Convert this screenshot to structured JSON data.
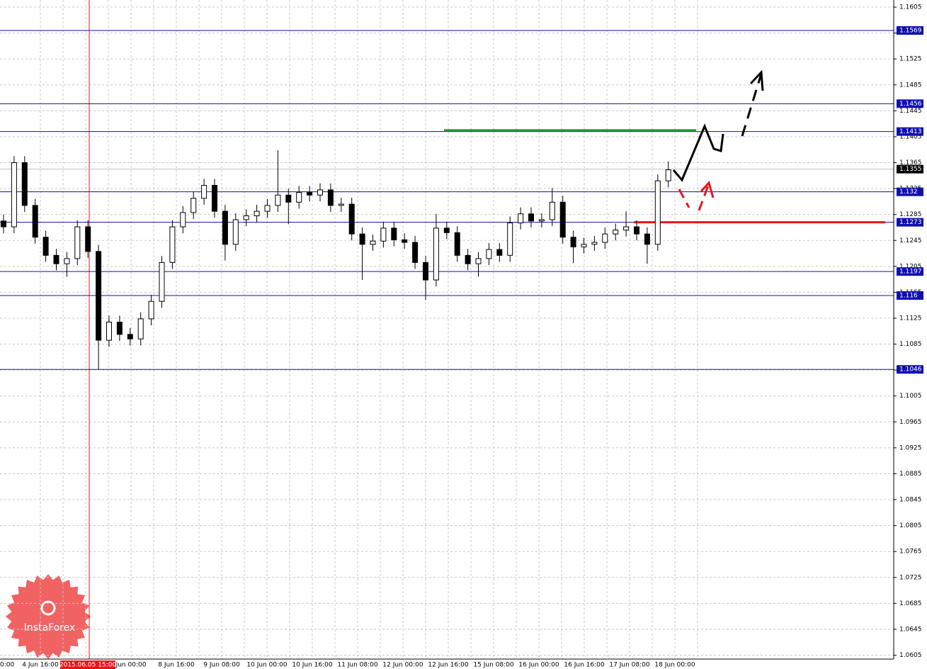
{
  "chart_data": {
    "type": "candlestick",
    "watermark": "InstaForex",
    "ylim": [
      1.0599,
      1.1616
    ],
    "yticks": [
      1.1605,
      1.1565,
      1.1525,
      1.1485,
      1.1445,
      1.1405,
      1.1365,
      1.1325,
      1.1285,
      1.1245,
      1.1205,
      1.1165,
      1.1125,
      1.1085,
      1.1045,
      1.1005,
      1.0965,
      1.0925,
      1.0885,
      1.0845,
      1.0805,
      1.0765,
      1.0725,
      1.0685,
      1.0645,
      1.0605
    ],
    "grid": true,
    "x_labels": [
      "0:00",
      "4 Jun 16:00",
      "2015.06.05 15:00",
      "Jun 00:00",
      "8 Jun 16:00",
      "9 Jun 08:00",
      "10 Jun 00:00",
      "10 Jun 16:00",
      "11 Jun 08:00",
      "12 Jun 00:00",
      "12 Jun 16:00",
      "15 Jun 08:00",
      "16 Jun 00:00",
      "16 Jun 16:00",
      "17 Jun 08:00",
      "18 Jun 00:00"
    ],
    "highlight_label_index": 2,
    "highlight_color": "#e8141a",
    "levels": [
      1.1569,
      1.1456,
      1.1413,
      1.132,
      1.1273,
      1.1197,
      1.116,
      1.1046
    ],
    "level_color": "#1010b0",
    "current_price": 1.1355,
    "trend_lines": [
      {
        "value": 1.1273,
        "color": "#e8141a"
      },
      {
        "value": 1.1415,
        "color": "#22a03a"
      }
    ],
    "ohlc": {
      "open": [
        1.1275,
        1.1266,
        1.1365,
        1.1299,
        1.125,
        1.1222,
        1.1209,
        1.1217,
        1.1266,
        1.1228,
        1.1091,
        1.1119,
        1.11,
        1.1093,
        1.1124,
        1.1151,
        1.1211,
        1.1266,
        1.1288,
        1.131,
        1.133,
        1.129,
        1.1239,
        1.1277,
        1.1283,
        1.129,
        1.1299,
        1.1315,
        1.1304,
        1.1319,
        1.1315,
        1.1323,
        1.1299,
        1.1301,
        1.1255,
        1.1239,
        1.1244,
        1.1264,
        1.1246,
        1.1242,
        1.1211,
        1.1184,
        1.1264,
        1.1257,
        1.1222,
        1.1209,
        1.1217,
        1.1231,
        1.1222,
        1.1272,
        1.1286,
        1.1275,
        1.1277,
        1.1304,
        1.125,
        1.1235,
        1.1239,
        1.1242,
        1.1255,
        1.1261,
        1.1266,
        1.1255,
        1.1239,
        1.1337
      ],
      "high": [
        1.1285,
        1.1375,
        1.1375,
        1.1309,
        1.126,
        1.1232,
        1.1227,
        1.1276,
        1.1276,
        1.1238,
        1.1129,
        1.1129,
        1.111,
        1.1134,
        1.1161,
        1.1221,
        1.1276,
        1.1298,
        1.132,
        1.134,
        1.134,
        1.13,
        1.1287,
        1.1293,
        1.13,
        1.1309,
        1.1384,
        1.1325,
        1.1329,
        1.1329,
        1.1333,
        1.1333,
        1.1311,
        1.1311,
        1.1265,
        1.1254,
        1.1274,
        1.1274,
        1.1256,
        1.1252,
        1.1221,
        1.1286,
        1.1274,
        1.1267,
        1.1232,
        1.1227,
        1.1241,
        1.1241,
        1.1282,
        1.1296,
        1.1296,
        1.1287,
        1.1326,
        1.1314,
        1.126,
        1.1249,
        1.1252,
        1.1265,
        1.1271,
        1.129,
        1.1276,
        1.1265,
        1.1347,
        1.1367
      ],
      "low": [
        1.1256,
        1.1256,
        1.1289,
        1.124,
        1.1212,
        1.1199,
        1.1189,
        1.1207,
        1.1218,
        1.1046,
        1.1081,
        1.109,
        1.1083,
        1.1083,
        1.1114,
        1.1141,
        1.1201,
        1.1256,
        1.1278,
        1.13,
        1.128,
        1.1214,
        1.1229,
        1.1267,
        1.1273,
        1.128,
        1.1289,
        1.127,
        1.1294,
        1.1305,
        1.1305,
        1.1289,
        1.1289,
        1.1245,
        1.1184,
        1.1229,
        1.1234,
        1.1236,
        1.1232,
        1.1201,
        1.1153,
        1.1174,
        1.1247,
        1.1212,
        1.1199,
        1.1189,
        1.1207,
        1.1212,
        1.1212,
        1.1262,
        1.1265,
        1.1265,
        1.1267,
        1.124,
        1.121,
        1.1225,
        1.1229,
        1.1232,
        1.1245,
        1.1251,
        1.1245,
        1.1209,
        1.1229,
        1.1327
      ],
      "close": [
        1.1266,
        1.1365,
        1.1299,
        1.125,
        1.1222,
        1.1209,
        1.1217,
        1.1266,
        1.1228,
        1.1091,
        1.1119,
        1.11,
        1.1093,
        1.1124,
        1.1151,
        1.1211,
        1.1266,
        1.1288,
        1.131,
        1.133,
        1.129,
        1.1239,
        1.1277,
        1.1283,
        1.129,
        1.1299,
        1.1315,
        1.1304,
        1.1319,
        1.1315,
        1.1323,
        1.1299,
        1.1301,
        1.1255,
        1.1239,
        1.1244,
        1.1264,
        1.1246,
        1.1242,
        1.1211,
        1.1184,
        1.1264,
        1.1257,
        1.1222,
        1.1209,
        1.1217,
        1.1231,
        1.1222,
        1.1272,
        1.1286,
        1.1275,
        1.1277,
        1.1304,
        1.125,
        1.1235,
        1.1239,
        1.1242,
        1.1255,
        1.1261,
        1.1266,
        1.1255,
        1.1239,
        1.1337,
        1.1354
      ]
    }
  }
}
